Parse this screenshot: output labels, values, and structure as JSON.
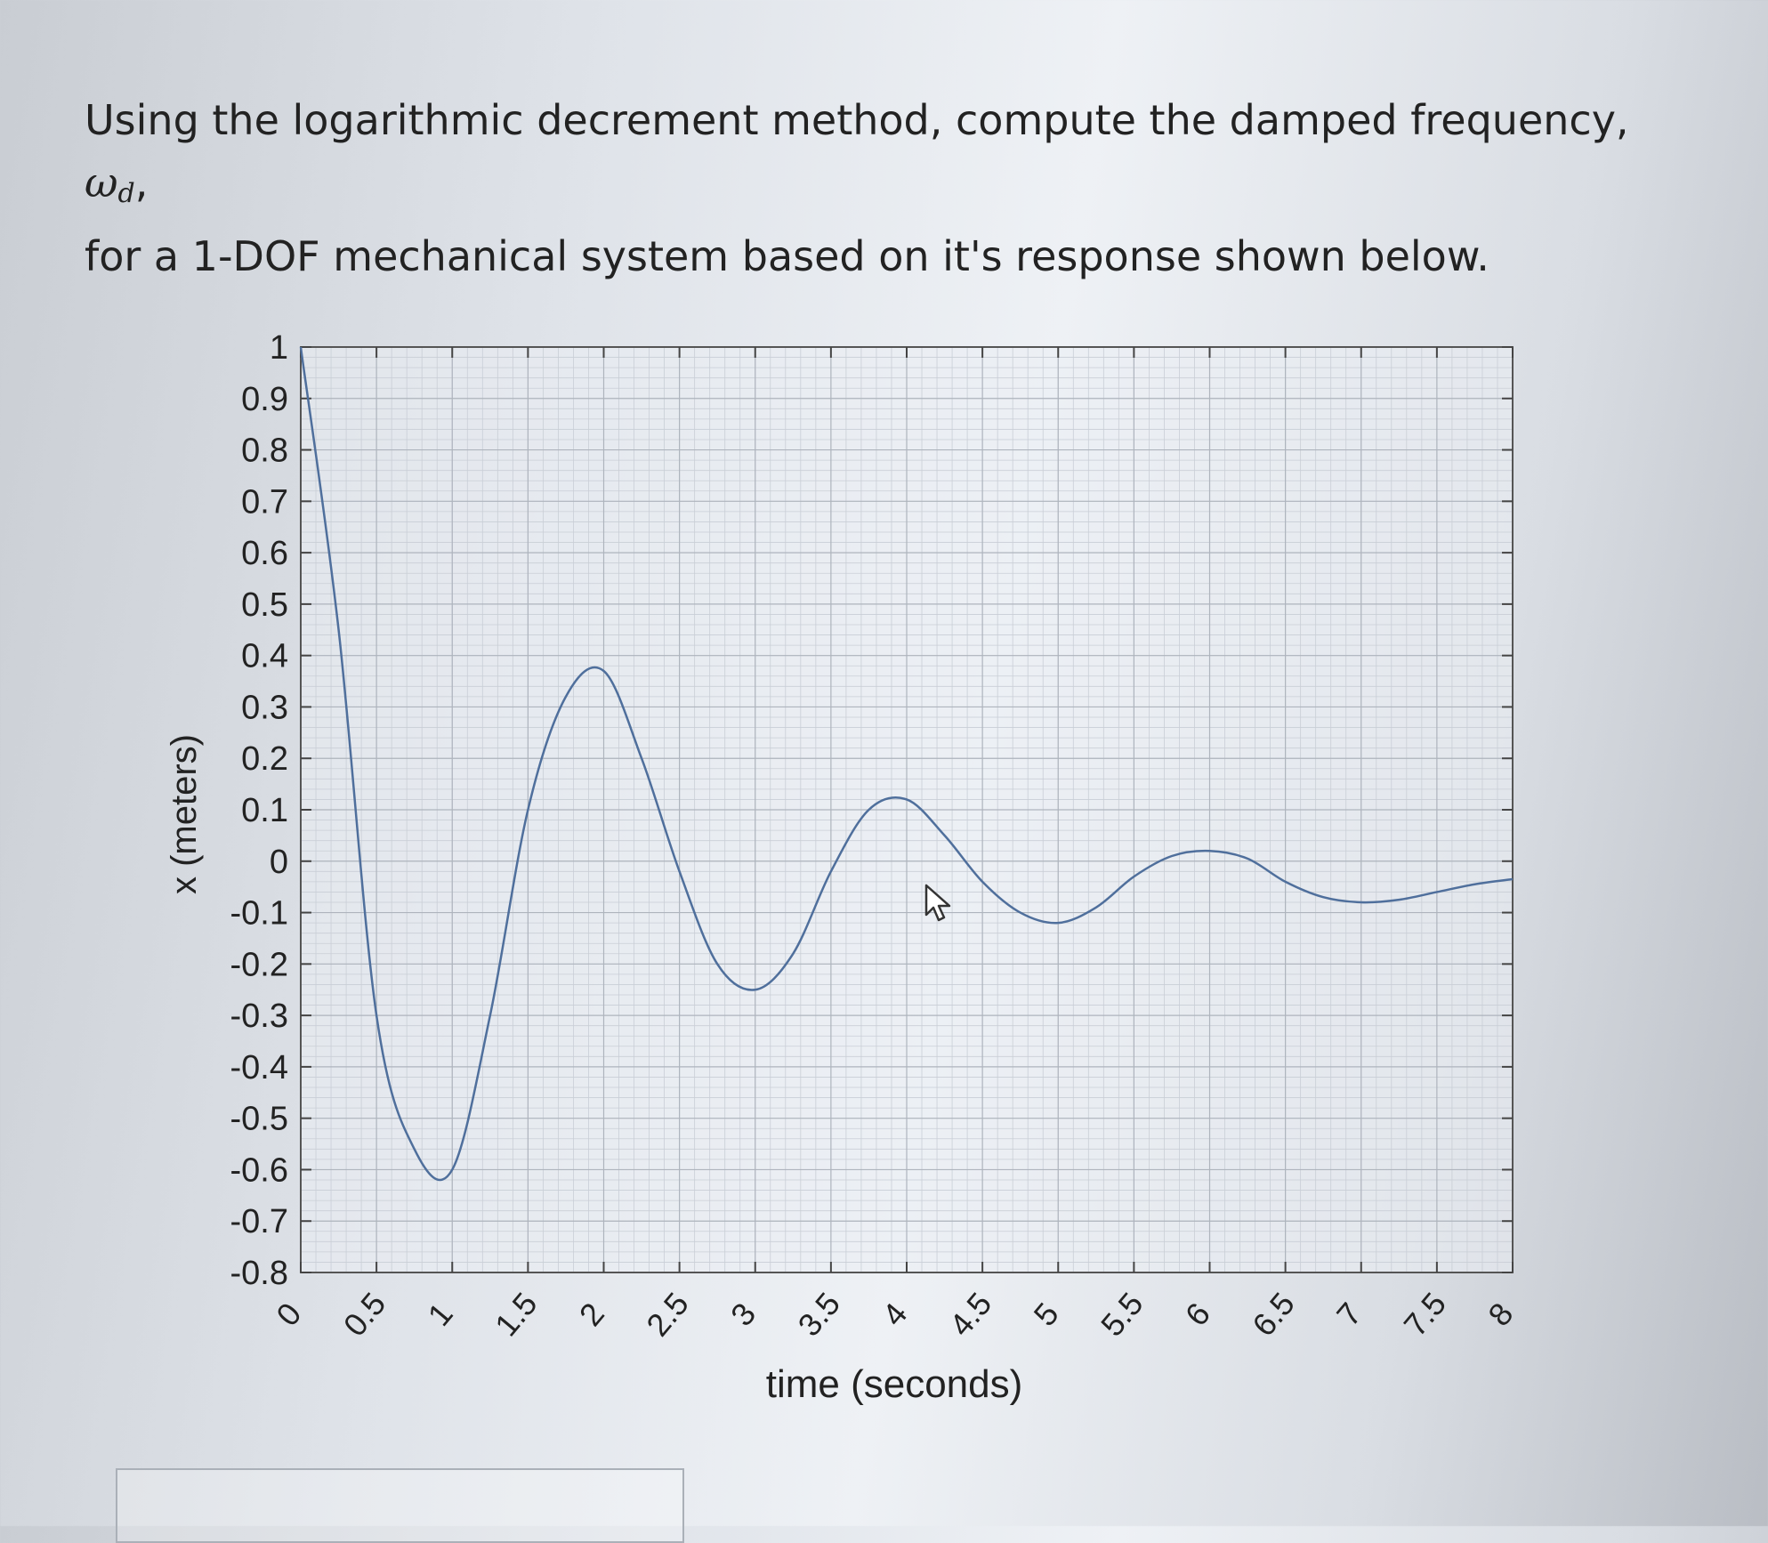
{
  "question": {
    "prefix": "Using the logarithmic decrement method, compute the damped frequency,",
    "symbol": "ω",
    "subscript": "d",
    "comma": ",",
    "line2": "for a 1-DOF mechanical system based on it's response shown below."
  },
  "chart_data": {
    "type": "line",
    "title": "",
    "xlabel": "time (seconds)",
    "ylabel": "x (meters)",
    "xlim": [
      0,
      8
    ],
    "ylim": [
      -0.8,
      1
    ],
    "grid": true,
    "x_ticks": [
      "0",
      "0.5",
      "1",
      "1.5",
      "2",
      "2.5",
      "3",
      "3.5",
      "4",
      "4.5",
      "5",
      "5.5",
      "6",
      "6.5",
      "7",
      "7.5",
      "8"
    ],
    "y_ticks": [
      "1",
      "0.9",
      "0.8",
      "0.7",
      "0.6",
      "0.5",
      "0.4",
      "0.3",
      "0.2",
      "0.1",
      "0",
      "-0.1",
      "-0.2",
      "-0.3",
      "-0.4",
      "-0.5",
      "-0.6",
      "-0.7",
      "-0.8"
    ],
    "series": [
      {
        "color": "#4f6f9c",
        "x": [
          0,
          0.25,
          0.5,
          0.75,
          1.0,
          1.25,
          1.5,
          1.75,
          2.0,
          2.25,
          2.5,
          2.75,
          3.0,
          3.25,
          3.5,
          3.75,
          4.0,
          4.25,
          4.5,
          4.75,
          5.0,
          5.25,
          5.5,
          5.75,
          6.0,
          6.25,
          6.5,
          6.75,
          7.0,
          7.25,
          7.5,
          7.75,
          8.0
        ],
        "y": [
          1.0,
          0.45,
          -0.3,
          -0.56,
          -0.6,
          -0.3,
          0.1,
          0.32,
          0.37,
          0.2,
          -0.02,
          -0.2,
          -0.25,
          -0.18,
          -0.02,
          0.1,
          0.12,
          0.05,
          -0.04,
          -0.1,
          -0.12,
          -0.09,
          -0.03,
          0.01,
          0.02,
          0.005,
          -0.04,
          -0.07,
          -0.08,
          -0.075,
          -0.06,
          -0.045,
          -0.035
        ]
      }
    ]
  }
}
